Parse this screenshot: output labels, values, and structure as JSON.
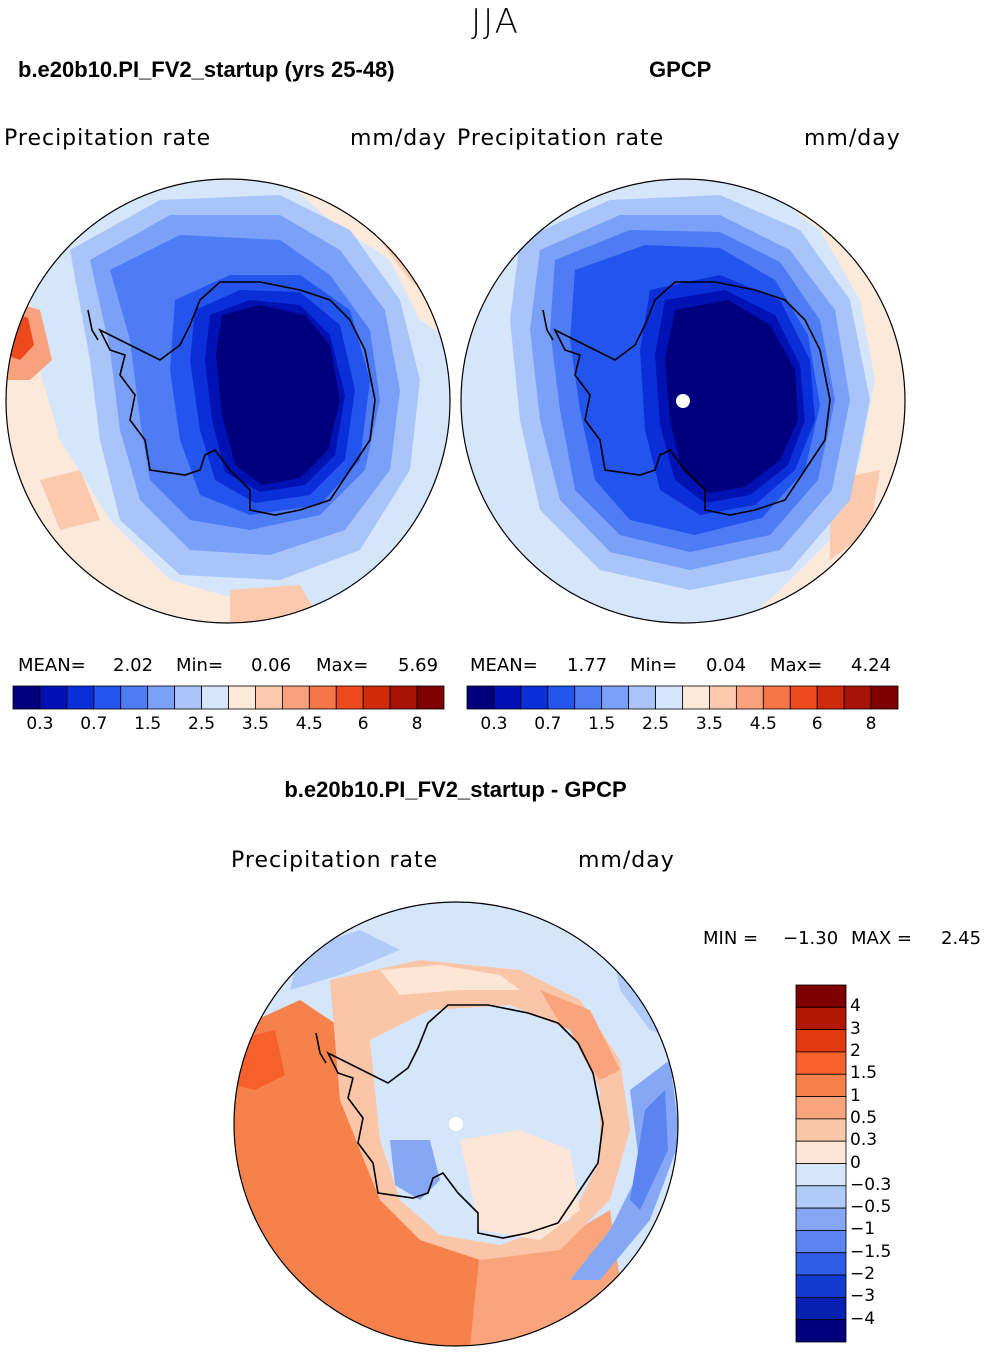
{
  "season": "JJA",
  "panels": [
    {
      "title": "b.e20b10.PI_FV2_startup (yrs 25-48)",
      "variable": "Precipitation rate",
      "units": "mm/day",
      "stats": {
        "mean_label": "MEAN=",
        "mean": "2.02",
        "min_label": "Min=",
        "min": "0.06",
        "max_label": "Max=",
        "max": "5.69"
      }
    },
    {
      "title": "GPCP",
      "variable": "Precipitation rate",
      "units": "mm/day",
      "stats": {
        "mean_label": "MEAN=",
        "mean": "1.77",
        "min_label": "Min=",
        "min": "0.04",
        "max_label": "Max=",
        "max": "4.24"
      }
    }
  ],
  "difference": {
    "title": "b.e20b10.PI_FV2_startup - GPCP",
    "variable": "Precipitation rate",
    "units": "mm/day",
    "min_label": "MIN =",
    "min": "−1.30",
    "max_label": "MAX =",
    "max": "2.45"
  },
  "colorbar_main": {
    "tick_labels": [
      "0.3",
      "0.7",
      "1.5",
      "2.5",
      "3.5",
      "4.5",
      "6",
      "8"
    ],
    "colors": [
      "#00007f",
      "#0012b3",
      "#0a2fd9",
      "#2454ee",
      "#4e7cf4",
      "#7ba0f7",
      "#a9c4f9",
      "#d5e6fb",
      "#fde9d9",
      "#fbc9ae",
      "#f9a07d",
      "#f57546",
      "#ec4a1c",
      "#cf2a09",
      "#a71305",
      "#7f0000"
    ]
  },
  "colorbar_diff": {
    "tick_labels": [
      "4",
      "3",
      "2",
      "1.5",
      "1",
      "0.5",
      "0.3",
      "0",
      "−0.3",
      "−0.5",
      "−1",
      "−1.5",
      "−2",
      "−3",
      "−4"
    ],
    "colors_top_to_bottom": [
      "#7f0000",
      "#b01804",
      "#e0380f",
      "#f5602b",
      "#f7814b",
      "#f9a47c",
      "#fbc6a8",
      "#fde6d6",
      "#d5e6fb",
      "#b0cbf8",
      "#86a8f4",
      "#5a84f0",
      "#2f5de8",
      "#123bd2",
      "#0620b0",
      "#00007f"
    ]
  }
}
